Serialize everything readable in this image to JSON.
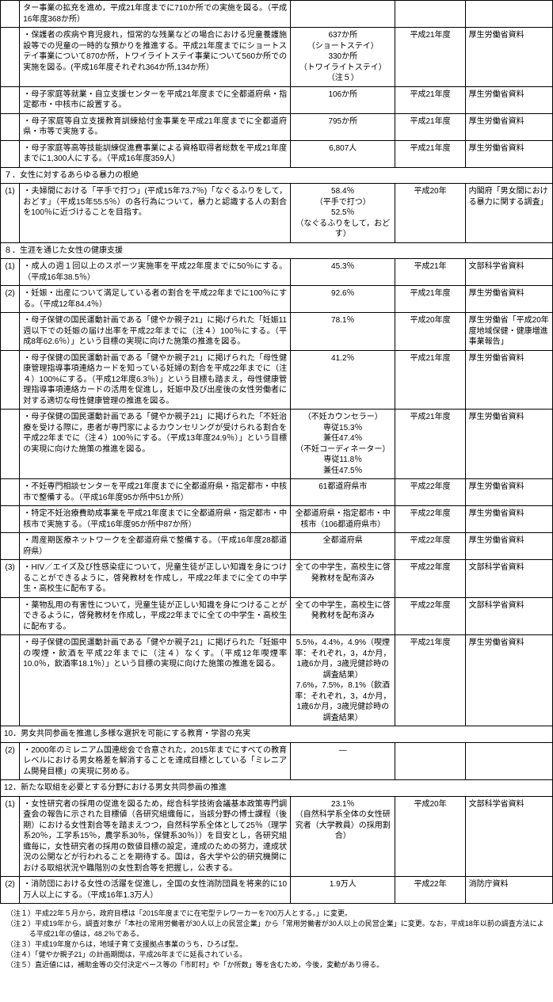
{
  "rows": [
    {
      "type": "row",
      "num": "",
      "desc": "ター事業の拡充を進め，平成21年度までに710か所での実施を図る。（平成16年度368か所）",
      "val": "",
      "year": "",
      "src": ""
    },
    {
      "type": "row",
      "num": "",
      "desc": "・保護者の疾病や育児疲れ，恒常的な残業などの場合における児童養護施設等での児童の一時的な預かりを推進する。平成21年度までにショートステイ事業について870か所，トワイライトステイ事業について560か所での実施を図る。(平成16年度それぞれ364か所,134か所）",
      "val": "637か所\n（ショートステイ）\n330か所\n（トワイライトステイ）\n（注５）",
      "year": "平成21年度",
      "src": "厚生労働省資料"
    },
    {
      "type": "row",
      "num": "",
      "desc": "・母子家庭等就業・自立支援センターを平成21年度までに全都道府県・指定都市・中核市に設置する。",
      "val": "106か所",
      "year": "平成21年度",
      "src": "厚生労働省資料"
    },
    {
      "type": "row",
      "num": "",
      "desc": "・母子家庭等自立支援教育訓練給付金事業を平成21年度までに全都道府県・市等で実施する。",
      "val": "795か所",
      "year": "平成21年度",
      "src": "厚生労働省資料"
    },
    {
      "type": "row",
      "num": "",
      "desc": "・母子家庭等高等技能訓練促進費事業による資格取得者総数を平成21年度までに1,300人にする。（平成16年度359人）",
      "val": "6,807人",
      "year": "平成21年度",
      "src": "厚生労働省資料"
    },
    {
      "type": "section",
      "text": "７．女性に対するあらゆる暴力の根絶"
    },
    {
      "type": "row",
      "num": "(1)",
      "desc": "・夫婦間における「平手で打つ」(平成15年73.7％)「なぐるふりをして，おどす」（平成15年55.5％）の各行為について，暴力と認識する人の割合を100％に近づけることを目指す。",
      "val": "58.4％\n（平手で打つ）\n52.5％\n（なぐるふりをして，おどす）",
      "year": "平成20年",
      "src": "内閣府「男女間における暴力に関する調査」"
    },
    {
      "type": "section",
      "text": "８．生涯を通じた女性の健康支援"
    },
    {
      "type": "row",
      "num": "(1)",
      "desc": "・成人の週１回以上のスポーツ実施率を平成22年度までに50％にする。（平成16年38.5％）",
      "val": "45.3％",
      "year": "平成21年",
      "src": "文部科学省資料"
    },
    {
      "type": "row",
      "num": "(2)",
      "desc": "・妊娠・出産について満足している者の割合を平成22年までに100％にする。（平成12年84.4％）",
      "val": "92.6％",
      "year": "平成21年度",
      "src": "厚生労働省資料"
    },
    {
      "type": "row",
      "num": "",
      "desc": "・母子保健の国民運動計画である「健やか親子21」に掲げられた「妊娠11週以下での妊娠の届け出率を平成22年までに（注４）100％にする。（平成8年62.6％）」という目標の実現に向けた施策の推進を図る。",
      "val": "78.1％",
      "year": "平成20年度",
      "src": "厚生労働省「平成20年度地域保健・健康増進事業報告」"
    },
    {
      "type": "row",
      "num": "",
      "desc": "・母子保健の国民運動計画である「健やか親子21」に掲げられた「母性健康管理指導事項連絡カードを知っている妊婦の割合を平成22年までに（注４）100%にする。（平成12年度6.3％）」という目標も踏まえ，母性健康管理指導事項連絡カードの活用を促進し，妊娠中及び出産後の女性労働者に対する適切な母性健康管理の推進を図る。",
      "val": "41.2％",
      "year": "平成21年度",
      "src": "厚生労働省資料"
    },
    {
      "type": "row",
      "num": "",
      "desc": "・母子保健の国民運動計画である「健やか親子21」に掲げられた「不妊治療を受ける際に，患者が専門家によるカウンセリングが受けられる割合を平成22年までに（注４）100％にする。（平成13年度24.9％）」という目標の実現に向けた施策の推進を図る。",
      "val": "（不妊カウンセラー）\n専従15.3％\n兼任47.4％\n（不妊コーディネーター）\n専従11.8％\n兼任47.5％",
      "year": "平成21年度",
      "src": "厚生労働省資料"
    },
    {
      "type": "row",
      "num": "",
      "desc": "・不妊専門相談センターを平成21年度までに全都道府県・指定都市・中核市で整備する。（平成16年度95か所中51か所）",
      "val": "61都道府県市",
      "year": "平成22年度",
      "src": "厚生労働省資料"
    },
    {
      "type": "row",
      "num": "",
      "desc": "・特定不妊治療費助成事業を平成21年度までに全都道府県・指定都市・中核市で実施する。（平成16年度95か所中87か所）",
      "val": "全都道府県・指定都市・中核市（106都道府県市）",
      "year": "平成22年度",
      "src": "厚生労働省資料"
    },
    {
      "type": "row",
      "num": "",
      "desc": "・周産期医療ネットワークを全都道府県で整備する。（平成16年度28都道府県）",
      "val": "全都道府県",
      "year": "平成22年度",
      "src": "厚生労働省資料"
    },
    {
      "type": "row",
      "num": "(3)",
      "desc": "・HIV／エイズ及び性感染症について，児童生徒が正しい知識を身につけることができるように，啓発教材を作成し，平成22年までに全ての中学生・高校生に配布する。",
      "val": "全ての中学生，高校生に啓発教材を配布済み",
      "year": "平成22年度",
      "src": "文部科学省資料"
    },
    {
      "type": "row",
      "num": "",
      "desc": "・薬物乱用の有害性について，児童生徒が正しい知識を身につけることができるように，啓発教材を作成し，平成22年までに全ての中学生・高校生に配布する。",
      "val": "全ての中学生，高校生に啓発教材を配布済み",
      "year": "平成22年度",
      "src": "文部科学省資料"
    },
    {
      "type": "row",
      "num": "",
      "desc": "・母子保健の国民運動計画である「健やか親子21」に掲げられた「妊娠中の喫煙・飲酒を平成22年までに（注４）なくす。（平成12年喫煙率10.0％，飲酒率18.1％）」という目標の実現に向けた施策の推進を図る。",
      "val": "5.5%，4.4%，4.9%（喫煙率：それぞれ，3，4か月，1歳6か月，3歳児健診時の調査結果）\n7.6%，7.5%，8.1%（飲酒率：それぞれ，3，4か月，1歳6か月，3歳児健診時の調査結果）",
      "year": "平成21年度",
      "src": "厚生労働省資料"
    },
    {
      "type": "section",
      "text": "10．男女共同参画を推進し多様な選択を可能にする教育・学習の充実"
    },
    {
      "type": "row",
      "num": "(2)",
      "desc": "・2000年のミレニアム国連総会で合意された，2015年までにすべての教育レベルにおける男女格差を解消することを達成目標としている「ミレニアム開発目標」の実現に努める。",
      "val": "―",
      "year": "",
      "src": ""
    },
    {
      "type": "section",
      "text": "12．新たな取組を必要とする分野における男女共同参画の推進"
    },
    {
      "type": "row",
      "num": "(1)",
      "desc": "・女性研究者の採用の促進を図るため，総合科学技術会議基本政策専門調査会の報告に示された目標値（各研究組織毎に，当該分野の博士課程（後期）における女性割合等を踏まえつつ，自然科学系全体として25％（理学系20％，工学系15％，農学系30％，保健系30％））を目安とし，各研究組織毎に，女性研究者の採用の数値目標の設定，達成のための努力，達成状況の公開などが行われることを期待する。国は，各大学や公的研究機関における取組状況や職階別の女性割合等を把握し，公表する。",
      "val": "23.1％\n（自然科学系全体の女性研究者（大学教員）の採用割合）",
      "year": "平成20年",
      "src": "文部科学省資料"
    },
    {
      "type": "row",
      "num": "(2)",
      "desc": "・消防団における女性の活躍を促進し，全国の女性消防団員を将来的に10万人以上にする。（平成16年1.3万人）",
      "val": "1.9万人",
      "year": "平成22年",
      "src": "消防庁資料"
    }
  ],
  "notes": [
    "（注１）平成22年５月から，政府目標は「2015年度までに在宅型テレワーカーを700万人とする。」に変更。",
    "（注２）平成19年から，調査対象が「本社の常用労働者が30人以上の民営企業」から「常用労働者が30人以上の民営企業」に変更。なお，平成18年以前の調査方法による平成21年の値は，48.2％である。",
    "（注３）平成19年度からは，地域子育て支援拠点事業のうち，ひろば型。",
    "（注４）「健やか親子21」の計画期間は，平成26年までに延長されている。",
    "（注５）直近値には，補助金等の交付決定ベース等の「市町村」や「か所数」等を含むため，今後，変動があり得る。"
  ]
}
